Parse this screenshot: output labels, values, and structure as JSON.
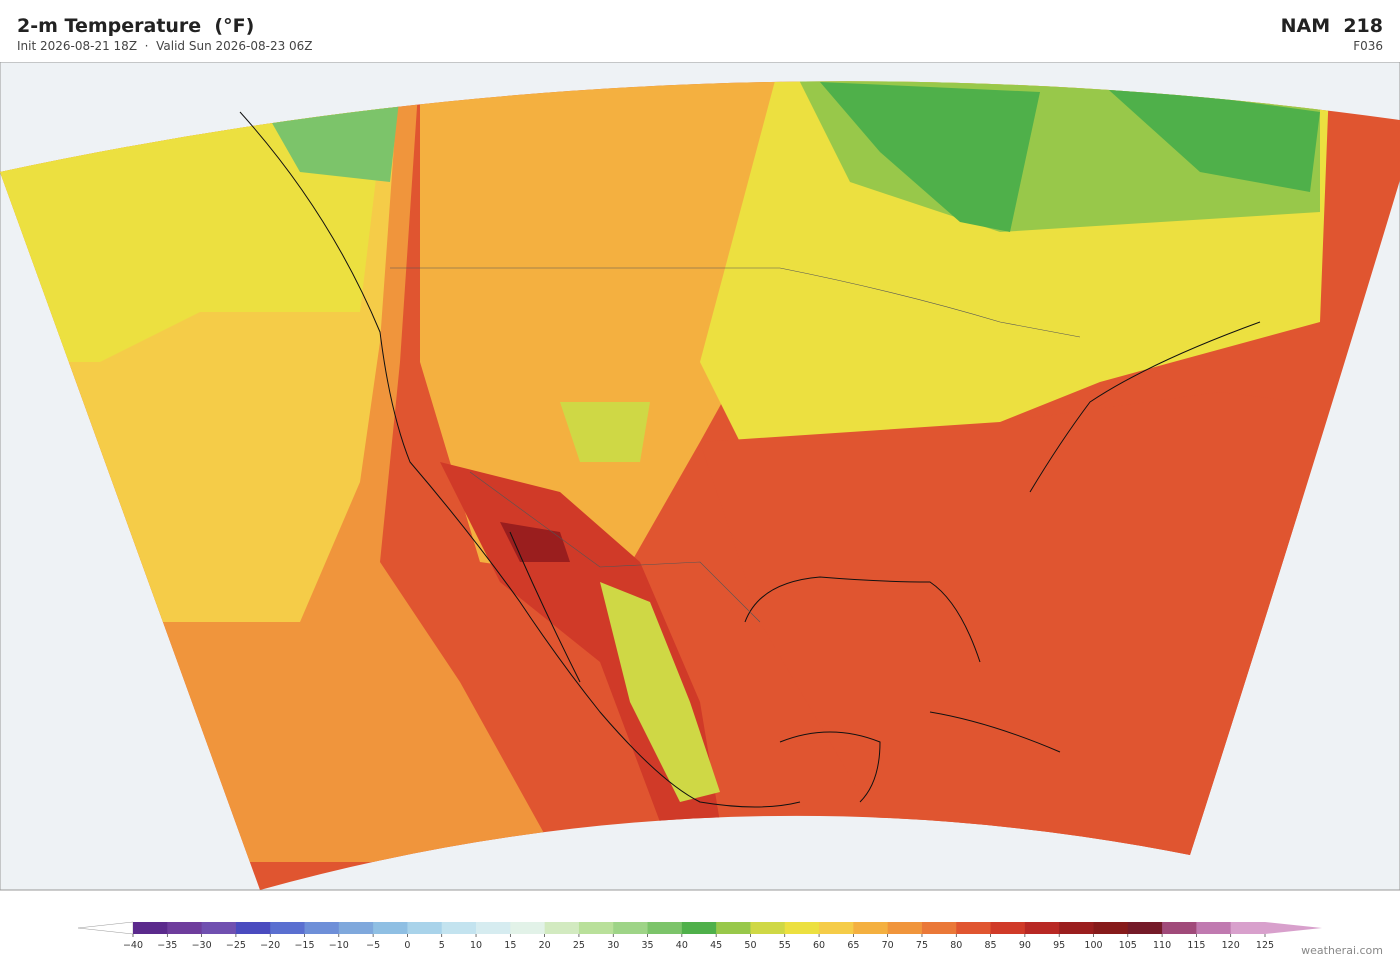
{
  "header": {
    "title": "2-m Temperature  (°F)",
    "subtitle": "Init 2026-08-21 18Z  ·  Valid Sun 2026-08-23 06Z",
    "model": "NAM  218",
    "forecast_hour": "F036"
  },
  "colorbar": {
    "ticks": [
      {
        "value": -40,
        "label": "−40"
      },
      {
        "value": -35,
        "label": "−35"
      },
      {
        "value": -30,
        "label": "−30"
      },
      {
        "value": -25,
        "label": "−25"
      },
      {
        "value": -20,
        "label": "−20"
      },
      {
        "value": -15,
        "label": "−15"
      },
      {
        "value": -10,
        "label": "−10"
      },
      {
        "value": -5,
        "label": "−5"
      },
      0,
      5,
      10,
      15,
      20,
      25,
      30,
      35,
      40,
      45,
      50,
      55,
      60,
      65,
      70,
      75,
      80,
      85,
      90,
      95,
      100,
      105,
      110,
      115,
      120,
      125
    ],
    "colors": [
      "#5b2a8c",
      "#6e3d9c",
      "#7050b0",
      "#4a4bbf",
      "#5a6fd0",
      "#6e8fd8",
      "#7fa8dc",
      "#8fbfe3",
      "#a9d3ea",
      "#c3e3ef",
      "#d6ecf0",
      "#e2f2e8",
      "#d2eac0",
      "#b9e09a",
      "#9ed487",
      "#7cc46a",
      "#4fb04a",
      "#98c84a",
      "#cfd845",
      "#ece040",
      "#f5cc48",
      "#f4b040",
      "#f0953c",
      "#ea7838",
      "#e05530",
      "#d03a28",
      "#b82824",
      "#9a1e1e",
      "#861a1a",
      "#741a28",
      "#a04a7a",
      "#c07ab0",
      "#d8a0cc"
    ],
    "under_color": "#ffffff",
    "over_color": "#d8a0cc"
  },
  "credit": "weatherai.com"
}
